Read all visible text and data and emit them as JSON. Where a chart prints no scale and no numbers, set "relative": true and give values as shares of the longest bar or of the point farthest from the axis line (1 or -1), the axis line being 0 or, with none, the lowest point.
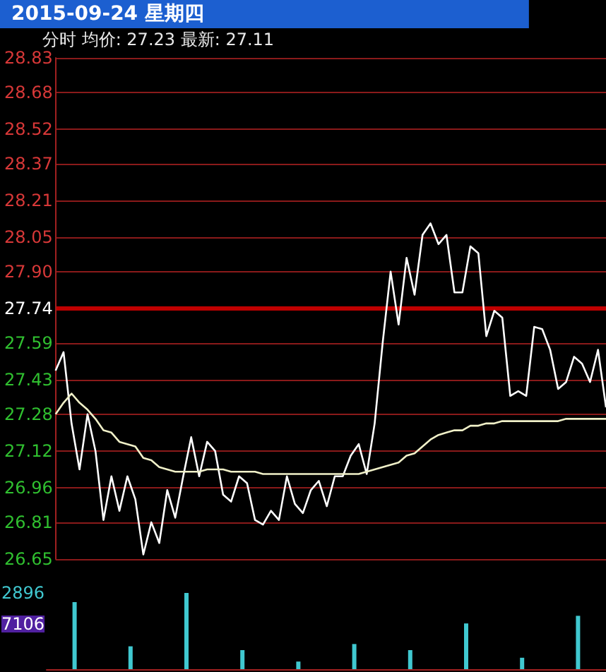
{
  "chart_data": [
    {
      "type": "line",
      "title": "2015-09-24 星期四",
      "subtitle": "分时 均价: 27.23 最新: 27.11",
      "categories": [
        null,
        null,
        null,
        null,
        null,
        null,
        null,
        null,
        null,
        null,
        null,
        null,
        null,
        null,
        null,
        null,
        null,
        null,
        null,
        null,
        null,
        null,
        null,
        null,
        null,
        null,
        null,
        null,
        null,
        null,
        null,
        null,
        null,
        null,
        null,
        null,
        null,
        null,
        null,
        null,
        null,
        null,
        null,
        null,
        null,
        null,
        null,
        null,
        null,
        null,
        null,
        null,
        null,
        null,
        null,
        null,
        null,
        null,
        null,
        null,
        null,
        null,
        null,
        null,
        null,
        null,
        null,
        null,
        null,
        null
      ],
      "tick_labels": "y",
      "ylim": [
        26.65,
        28.83
      ],
      "yticks": [
        26.65,
        26.81,
        26.96,
        27.12,
        27.28,
        27.43,
        27.59,
        27.74,
        {
          "value": 27.9,
          "label": "27.90"
        },
        28.05,
        28.21,
        28.37,
        28.52,
        28.68,
        28.83
      ],
      "grid": "y",
      "line_style": "solid",
      "ref_lines": [
        {
          "axis": "y",
          "value": 27.74,
          "color": "#c00000"
        }
      ],
      "series": [
        {
          "color": "#ffffff",
          "values": [
            27.47,
            27.55,
            27.24,
            27.04,
            27.28,
            27.12,
            26.82,
            27.01,
            26.86,
            27.01,
            26.91,
            26.67,
            26.81,
            26.72,
            26.95,
            26.83,
            27.01,
            27.18,
            27.01,
            27.16,
            27.12,
            26.93,
            26.9,
            27.01,
            26.98,
            26.82,
            26.8,
            26.86,
            26.82,
            27.01,
            26.89,
            26.85,
            26.95,
            26.99,
            26.88,
            27.01,
            27.01,
            27.1,
            27.15,
            27.02,
            27.24,
            27.59,
            27.9,
            27.67,
            27.96,
            27.8,
            28.06,
            28.11,
            28.02,
            28.06,
            27.81,
            27.81,
            28.01,
            27.98,
            27.62,
            27.73,
            27.7,
            27.36,
            27.38,
            27.36,
            27.66,
            27.65,
            27.56,
            27.39,
            27.42,
            27.53,
            27.5,
            27.42,
            27.56,
            27.31
          ]
        },
        {
          "color": "#f0f0c8",
          "values": [
            27.28,
            27.33,
            27.37,
            27.33,
            27.3,
            27.26,
            27.21,
            27.2,
            27.16,
            27.15,
            27.14,
            27.09,
            27.08,
            27.05,
            27.04,
            27.03,
            27.03,
            27.03,
            27.03,
            27.04,
            27.04,
            27.04,
            27.03,
            27.03,
            27.03,
            27.03,
            27.02,
            27.02,
            27.02,
            27.02,
            27.02,
            27.02,
            27.02,
            27.02,
            27.02,
            27.02,
            27.02,
            27.02,
            27.02,
            27.03,
            27.04,
            27.05,
            27.06,
            27.07,
            27.1,
            27.11,
            27.14,
            27.17,
            27.19,
            27.2,
            27.21,
            27.21,
            27.23,
            27.23,
            27.24,
            27.24,
            27.25,
            27.25,
            27.25,
            27.25,
            27.25,
            27.25,
            27.25,
            27.25,
            27.26,
            27.26,
            27.26,
            27.26,
            27.26,
            27.26
          ]
        }
      ]
    },
    {
      "type": "bar",
      "relative": true,
      "tick_labels": false,
      "categories": [
        null,
        null,
        null,
        null,
        null,
        null,
        null,
        null,
        null,
        null
      ],
      "annotations": [
        "2896",
        "7106"
      ],
      "series": [
        {
          "color": "#40c8d0",
          "values": [
            0.88,
            0.3,
            1,
            0.25,
            0.1,
            0.33,
            0.25,
            0.6,
            0.15,
            0.7
          ]
        }
      ]
    }
  ]
}
